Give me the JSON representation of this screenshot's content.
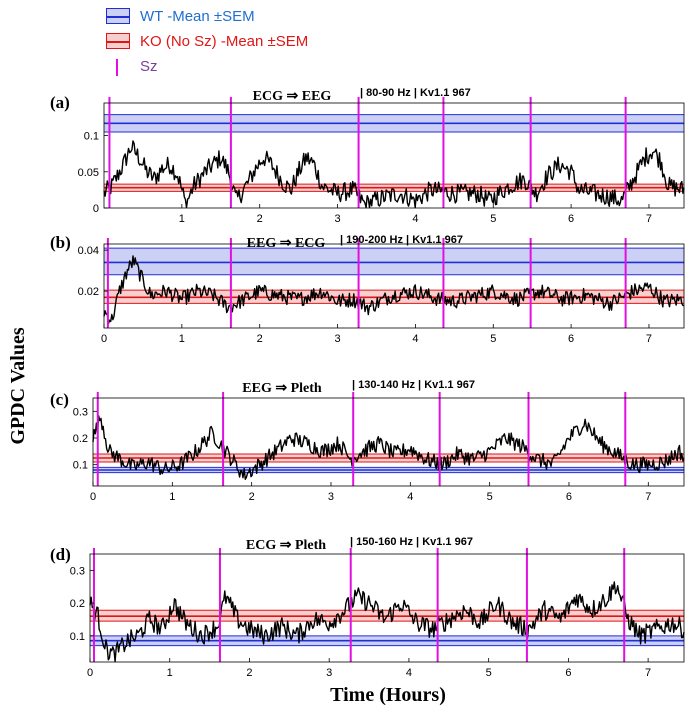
{
  "legend": {
    "wt_label": "WT -Mean ±SEM",
    "ko_label": "KO (No Sz) -Mean ±SEM",
    "sz_label": "Sz"
  },
  "colors": {
    "wt_line": "#1f2fd6",
    "wt_fill": "#cdd0f5",
    "ko_line": "#e01616",
    "ko_fill": "#f8cfcf",
    "sz_line": "#e010e0",
    "trace": "#000000",
    "legend_wt_text": "#1f6fd0",
    "legend_ko_text": "#e01616",
    "legend_sz_text": "#7a3fa0"
  },
  "ylabel": "GPDC Values",
  "xlabel": "Time (Hours)",
  "chart_data": [
    {
      "type": "line",
      "panel": "(a)",
      "title": "ECG ⇒ EEG",
      "subtitle": "| 80-90 Hz | Kv1.1 967",
      "xlim": [
        0,
        7.45
      ],
      "ylim": [
        0,
        0.145
      ],
      "xticks": [
        1,
        2,
        3,
        4,
        5,
        6,
        7
      ],
      "yticks": [
        0,
        0.05,
        0.1
      ],
      "yticklabels": [
        "0",
        "0.05",
        "0.1"
      ],
      "wt": {
        "mean": 0.117,
        "lo": 0.105,
        "hi": 0.129
      },
      "ko": {
        "mean": 0.028,
        "lo": 0.023,
        "hi": 0.033
      },
      "seizures": [
        0.07,
        1.63,
        3.27,
        4.36,
        5.48,
        6.7
      ],
      "trace_knots": [
        [
          0,
          0.02
        ],
        [
          0.1,
          0.03
        ],
        [
          0.25,
          0.06
        ],
        [
          0.35,
          0.085
        ],
        [
          0.45,
          0.07
        ],
        [
          0.55,
          0.05
        ],
        [
          0.65,
          0.04
        ],
        [
          0.75,
          0.055
        ],
        [
          0.85,
          0.06
        ],
        [
          0.95,
          0.045
        ],
        [
          1.05,
          0.005
        ],
        [
          1.15,
          0.03
        ],
        [
          1.3,
          0.05
        ],
        [
          1.4,
          0.06
        ],
        [
          1.5,
          0.07
        ],
        [
          1.6,
          0.05
        ],
        [
          1.7,
          0.01
        ],
        [
          1.85,
          0.035
        ],
        [
          1.95,
          0.055
        ],
        [
          2.05,
          0.07
        ],
        [
          2.15,
          0.06
        ],
        [
          2.3,
          0.035
        ],
        [
          2.4,
          0.025
        ],
        [
          2.5,
          0.05
        ],
        [
          2.6,
          0.07
        ],
        [
          2.7,
          0.06
        ],
        [
          2.8,
          0.03
        ],
        [
          3.0,
          0.02
        ],
        [
          3.2,
          0.025
        ],
        [
          3.35,
          0.005
        ],
        [
          3.6,
          0.015
        ],
        [
          3.8,
          0.02
        ],
        [
          4.0,
          0.01
        ],
        [
          4.2,
          0.025
        ],
        [
          4.5,
          0.02
        ],
        [
          4.8,
          0.02
        ],
        [
          4.95,
          0.01
        ],
        [
          5.2,
          0.03
        ],
        [
          5.4,
          0.04
        ],
        [
          5.55,
          0.02
        ],
        [
          5.7,
          0.045
        ],
        [
          5.85,
          0.06
        ],
        [
          6.0,
          0.05
        ],
        [
          6.1,
          0.025
        ],
        [
          6.3,
          0.02
        ],
        [
          6.5,
          0.015
        ],
        [
          6.65,
          0.01
        ],
        [
          6.8,
          0.04
        ],
        [
          6.95,
          0.07
        ],
        [
          7.05,
          0.08
        ],
        [
          7.15,
          0.065
        ],
        [
          7.25,
          0.03
        ],
        [
          7.45,
          0.025
        ]
      ]
    },
    {
      "type": "line",
      "panel": "(b)",
      "title": "EEG ⇒ ECG",
      "subtitle": "| 190-200 Hz | Kv1.1 967",
      "xlim": [
        0,
        7.45
      ],
      "ylim": [
        0.002,
        0.043
      ],
      "xticks": [
        0,
        1,
        2,
        3,
        4,
        5,
        6,
        7
      ],
      "yticks": [
        0.02,
        0.04
      ],
      "yticklabels": [
        "0.02",
        "0.04"
      ],
      "wt": {
        "mean": 0.034,
        "lo": 0.028,
        "hi": 0.041
      },
      "ko": {
        "mean": 0.017,
        "lo": 0.014,
        "hi": 0.0205
      },
      "seizures": [
        0.05,
        1.63,
        3.27,
        4.36,
        5.48,
        6.7
      ],
      "trace_knots": [
        [
          0,
          0.01
        ],
        [
          0.1,
          0.006
        ],
        [
          0.2,
          0.02
        ],
        [
          0.3,
          0.03
        ],
        [
          0.38,
          0.035
        ],
        [
          0.5,
          0.025
        ],
        [
          0.6,
          0.018
        ],
        [
          0.8,
          0.02
        ],
        [
          1.0,
          0.016
        ],
        [
          1.2,
          0.02
        ],
        [
          1.4,
          0.018
        ],
        [
          1.6,
          0.012
        ],
        [
          1.8,
          0.016
        ],
        [
          2.0,
          0.02
        ],
        [
          2.2,
          0.018
        ],
        [
          2.5,
          0.016
        ],
        [
          2.8,
          0.02
        ],
        [
          3.0,
          0.015
        ],
        [
          3.2,
          0.016
        ],
        [
          3.4,
          0.012
        ],
        [
          3.7,
          0.018
        ],
        [
          4.0,
          0.02
        ],
        [
          4.3,
          0.016
        ],
        [
          4.5,
          0.015
        ],
        [
          4.8,
          0.018
        ],
        [
          5.0,
          0.02
        ],
        [
          5.3,
          0.016
        ],
        [
          5.6,
          0.02
        ],
        [
          5.9,
          0.016
        ],
        [
          6.2,
          0.018
        ],
        [
          6.5,
          0.014
        ],
        [
          6.8,
          0.02
        ],
        [
          7.0,
          0.022
        ],
        [
          7.2,
          0.015
        ],
        [
          7.45,
          0.016
        ]
      ]
    },
    {
      "type": "line",
      "panel": "(c)",
      "title": "EEG ⇒ Pleth",
      "subtitle": "| 130-140 Hz | Kv1.1 967",
      "xlim": [
        0,
        7.45
      ],
      "ylim": [
        0.02,
        0.35
      ],
      "xticks": [
        0,
        1,
        2,
        3,
        4,
        5,
        6,
        7
      ],
      "yticks": [
        0.1,
        0.2,
        0.3
      ],
      "yticklabels": [
        "0.1",
        "0.2",
        "0.3"
      ],
      "wt": {
        "mean": 0.08,
        "lo": 0.07,
        "hi": 0.09
      },
      "ko": {
        "mean": 0.125,
        "lo": 0.11,
        "hi": 0.14
      },
      "seizures": [
        0.06,
        1.64,
        3.28,
        4.37,
        5.49,
        6.71
      ],
      "trace_knots": [
        [
          0,
          0.2
        ],
        [
          0.1,
          0.28
        ],
        [
          0.2,
          0.15
        ],
        [
          0.35,
          0.12
        ],
        [
          0.5,
          0.09
        ],
        [
          0.7,
          0.11
        ],
        [
          0.9,
          0.08
        ],
        [
          1.1,
          0.1
        ],
        [
          1.3,
          0.15
        ],
        [
          1.5,
          0.22
        ],
        [
          1.6,
          0.18
        ],
        [
          1.75,
          0.12
        ],
        [
          1.9,
          0.06
        ],
        [
          2.1,
          0.1
        ],
        [
          2.3,
          0.15
        ],
        [
          2.5,
          0.2
        ],
        [
          2.7,
          0.18
        ],
        [
          2.9,
          0.15
        ],
        [
          3.1,
          0.18
        ],
        [
          3.25,
          0.12
        ],
        [
          3.4,
          0.15
        ],
        [
          3.6,
          0.18
        ],
        [
          3.8,
          0.14
        ],
        [
          4.0,
          0.16
        ],
        [
          4.2,
          0.12
        ],
        [
          4.4,
          0.1
        ],
        [
          4.6,
          0.14
        ],
        [
          4.8,
          0.12
        ],
        [
          5.0,
          0.15
        ],
        [
          5.2,
          0.2
        ],
        [
          5.4,
          0.17
        ],
        [
          5.6,
          0.12
        ],
        [
          5.8,
          0.1
        ],
        [
          6.0,
          0.2
        ],
        [
          6.2,
          0.26
        ],
        [
          6.4,
          0.18
        ],
        [
          6.6,
          0.14
        ],
        [
          6.8,
          0.1
        ],
        [
          7.0,
          0.1
        ],
        [
          7.2,
          0.11
        ],
        [
          7.4,
          0.15
        ],
        [
          7.45,
          0.12
        ]
      ]
    },
    {
      "type": "line",
      "panel": "(d)",
      "title": "ECG ⇒ Pleth",
      "subtitle": "| 150-160 Hz | Kv1.1 967",
      "xlim": [
        0,
        7.45
      ],
      "ylim": [
        0.02,
        0.35
      ],
      "xticks": [
        0,
        1,
        2,
        3,
        4,
        5,
        6,
        7
      ],
      "yticks": [
        0.1,
        0.2,
        0.3
      ],
      "yticklabels": [
        "0.1",
        "0.2",
        "0.3"
      ],
      "wt": {
        "mean": 0.085,
        "lo": 0.07,
        "hi": 0.1
      },
      "ko": {
        "mean": 0.16,
        "lo": 0.145,
        "hi": 0.178
      },
      "seizures": [
        0.05,
        1.63,
        3.27,
        4.36,
        5.48,
        6.7
      ],
      "trace_knots": [
        [
          0,
          0.2
        ],
        [
          0.1,
          0.16
        ],
        [
          0.2,
          0.06
        ],
        [
          0.3,
          0.04
        ],
        [
          0.45,
          0.08
        ],
        [
          0.6,
          0.1
        ],
        [
          0.75,
          0.15
        ],
        [
          0.9,
          0.12
        ],
        [
          1.05,
          0.2
        ],
        [
          1.2,
          0.14
        ],
        [
          1.4,
          0.1
        ],
        [
          1.6,
          0.13
        ],
        [
          1.7,
          0.22
        ],
        [
          1.85,
          0.15
        ],
        [
          2.0,
          0.12
        ],
        [
          2.2,
          0.1
        ],
        [
          2.4,
          0.13
        ],
        [
          2.6,
          0.1
        ],
        [
          2.8,
          0.15
        ],
        [
          3.0,
          0.14
        ],
        [
          3.2,
          0.18
        ],
        [
          3.35,
          0.22
        ],
        [
          3.5,
          0.2
        ],
        [
          3.7,
          0.15
        ],
        [
          3.9,
          0.2
        ],
        [
          4.1,
          0.14
        ],
        [
          4.3,
          0.12
        ],
        [
          4.5,
          0.15
        ],
        [
          4.7,
          0.18
        ],
        [
          4.9,
          0.14
        ],
        [
          5.1,
          0.2
        ],
        [
          5.3,
          0.14
        ],
        [
          5.5,
          0.12
        ],
        [
          5.7,
          0.18
        ],
        [
          5.9,
          0.15
        ],
        [
          6.1,
          0.22
        ],
        [
          6.3,
          0.18
        ],
        [
          6.5,
          0.22
        ],
        [
          6.6,
          0.26
        ],
        [
          6.75,
          0.15
        ],
        [
          6.9,
          0.1
        ],
        [
          7.1,
          0.12
        ],
        [
          7.3,
          0.14
        ],
        [
          7.45,
          0.12
        ]
      ]
    }
  ]
}
